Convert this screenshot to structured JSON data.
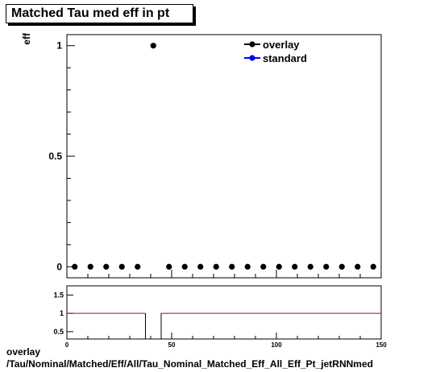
{
  "title": "Matched Tau med eff in pt",
  "footer": {
    "line1": "overlay",
    "line2": "/Tau/Nominal/Matched/Eff/All/Tau_Nominal_Matched_Eff_All_Eff_Pt_jetRNNmed"
  },
  "chart_data": {
    "type": "scatter",
    "title": "Matched Tau med eff in pt",
    "ylabel": "eff",
    "xlabel": "",
    "xlim": [
      0,
      150
    ],
    "ylim": [
      -0.05,
      1.05
    ],
    "y_ticks": [
      0,
      0.5,
      1
    ],
    "y_tick_labels": [
      "0",
      "0.5",
      "1"
    ],
    "legend": {
      "placement": "top-right",
      "entries": [
        {
          "name": "overlay",
          "color": "#000000"
        },
        {
          "name": "standard",
          "color": "#0000ff"
        }
      ]
    },
    "series": [
      {
        "name": "overlay",
        "color": "#000000",
        "x": [
          3.75,
          11.25,
          18.75,
          26.25,
          33.75,
          41.25,
          48.75,
          56.25,
          63.75,
          71.25,
          78.75,
          86.25,
          93.75,
          101.25,
          108.75,
          116.25,
          123.75,
          131.25,
          138.75,
          146.25
        ],
        "y": [
          0,
          0,
          0,
          0,
          0,
          1,
          0,
          0,
          0,
          0,
          0,
          0,
          0,
          0,
          0,
          0,
          0,
          0,
          0,
          0
        ]
      }
    ],
    "ratio_panel": {
      "ylim": [
        0.3,
        1.75
      ],
      "y_ticks": [
        0.5,
        1,
        1.5
      ],
      "y_tick_labels": [
        "0.5",
        "1",
        "1.5"
      ],
      "x_ticks": [
        0,
        50,
        100,
        150
      ],
      "x_tick_labels": [
        "0",
        "50",
        "100",
        "150"
      ],
      "reference_line": 1,
      "reference_color": "#cc0000",
      "gap": [
        37.5,
        45
      ]
    }
  }
}
